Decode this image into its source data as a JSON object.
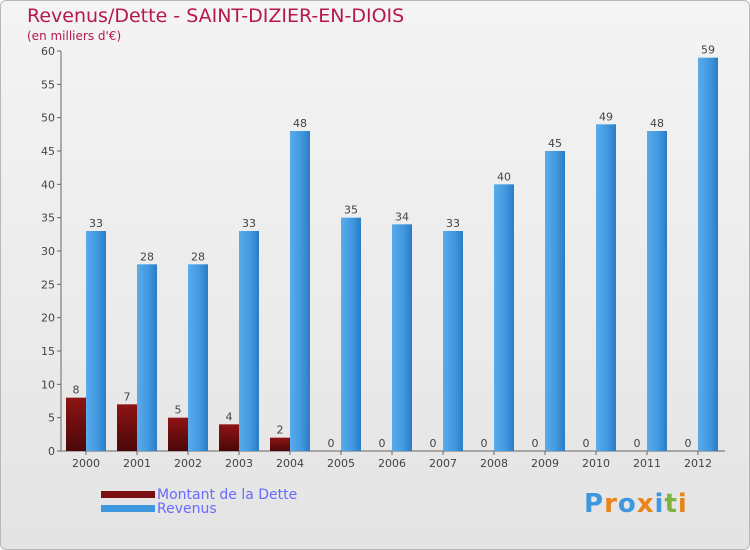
{
  "chart_data": {
    "type": "bar",
    "title": "Revenus/Dette - SAINT-DIZIER-EN-DIOIS",
    "subtitle": "(en milliers d'€)",
    "categories": [
      "2000",
      "2001",
      "2002",
      "2003",
      "2004",
      "2005",
      "2006",
      "2007",
      "2008",
      "2009",
      "2010",
      "2011",
      "2012"
    ],
    "series": [
      {
        "name": "Montant de la Dette",
        "values": [
          8,
          7,
          5,
          4,
          2,
          0,
          0,
          0,
          0,
          0,
          0,
          0,
          0
        ],
        "color": "#7a1010"
      },
      {
        "name": "Revenus",
        "values": [
          33,
          28,
          28,
          33,
          48,
          35,
          34,
          33,
          40,
          45,
          49,
          48,
          59
        ],
        "color": "#3f97de"
      }
    ],
    "ylim": [
      0,
      60
    ],
    "yticks": [
      0,
      5,
      10,
      15,
      20,
      25,
      30,
      35,
      40,
      45,
      50,
      55,
      60
    ],
    "grid": false,
    "legend": "bottom-left"
  },
  "logo": {
    "text": "Proxiti",
    "colors": [
      "#3f97de",
      "#e8851a",
      "#3f97de",
      "#e8851a",
      "#3f97de",
      "#7cb342",
      "#e8851a"
    ]
  }
}
